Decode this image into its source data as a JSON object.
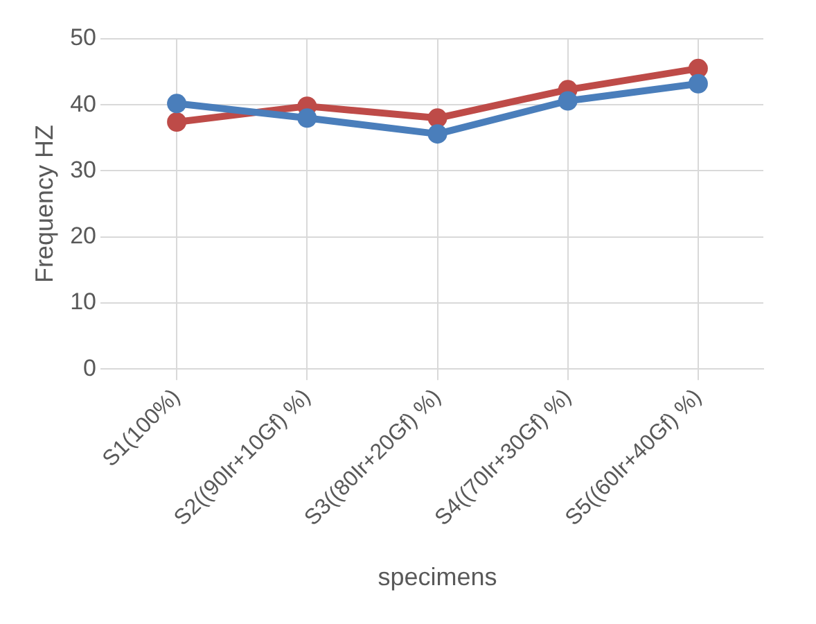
{
  "chart_data": {
    "type": "line",
    "xlabel": "specimens",
    "ylabel": "Frequency HZ",
    "categories": [
      "S1(100%)",
      "S2((90Ir+10Gf) %)",
      "S3((80Ir+20Gf) %)",
      "S4((70Ir+30Gf) %)",
      "S5((60Ir+40Gf) %)"
    ],
    "series": [
      {
        "color": "#4a7ebb",
        "values": [
          40.2,
          38.0,
          35.6,
          40.6,
          43.2
        ]
      },
      {
        "color": "#be4b48",
        "values": [
          37.4,
          39.8,
          38.0,
          42.3,
          45.5
        ]
      }
    ],
    "ylim": [
      0,
      50
    ],
    "yticks": [
      0,
      10,
      20,
      30,
      40,
      50
    ],
    "grid": true,
    "legend": false,
    "marker": "circle",
    "line_style": "solid"
  }
}
